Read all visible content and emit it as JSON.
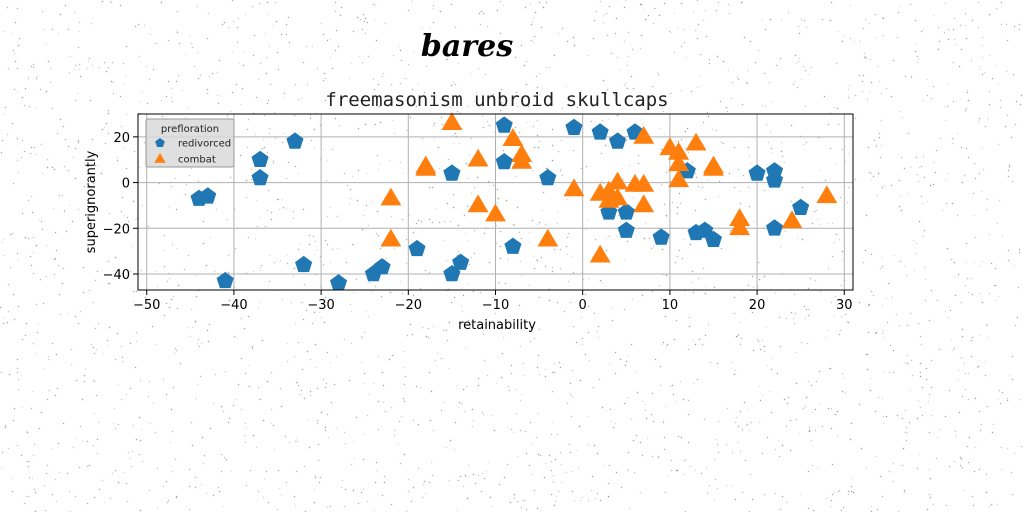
{
  "chart_data": {
    "type": "scatter",
    "supertitle": "bares",
    "title": "freemasonism unbroid skullcaps",
    "xlabel": "retainability",
    "ylabel": "superignorantly",
    "xlim": [
      -51,
      31
    ],
    "ylim": [
      -47,
      30
    ],
    "xticks": [
      -50,
      -40,
      -30,
      -20,
      -10,
      0,
      10,
      20,
      30
    ],
    "yticks": [
      -40,
      -20,
      0,
      20
    ],
    "grid": true,
    "legend": {
      "title": "prefloration",
      "placement": "top-left"
    },
    "series": [
      {
        "name": "redivorced",
        "marker": "pentagon",
        "color": "#1f77b4",
        "points": [
          [
            -44,
            -7
          ],
          [
            -43,
            -6
          ],
          [
            -41,
            -43
          ],
          [
            -37,
            10
          ],
          [
            -37,
            2
          ],
          [
            -33,
            18
          ],
          [
            -32,
            -36
          ],
          [
            -28,
            -44
          ],
          [
            -24,
            -40
          ],
          [
            -23,
            -37
          ],
          [
            -19,
            -29
          ],
          [
            -15,
            -40
          ],
          [
            -14,
            -35
          ],
          [
            -15,
            4
          ],
          [
            -9,
            25
          ],
          [
            -9,
            9
          ],
          [
            -8,
            -28
          ],
          [
            -4,
            2
          ],
          [
            -1,
            24
          ],
          [
            2,
            22
          ],
          [
            4,
            18
          ],
          [
            6,
            22
          ],
          [
            3,
            -13
          ],
          [
            5,
            -13
          ],
          [
            5,
            -21
          ],
          [
            9,
            -24
          ],
          [
            12,
            5
          ],
          [
            13,
            -22
          ],
          [
            14,
            -21
          ],
          [
            15,
            -25
          ],
          [
            20,
            4
          ],
          [
            22,
            5
          ],
          [
            22,
            1
          ],
          [
            22,
            -20
          ],
          [
            25,
            -11
          ]
        ]
      },
      {
        "name": "combat",
        "marker": "triangle",
        "color": "#ff7f0e",
        "points": [
          [
            -22,
            -7
          ],
          [
            -22,
            -25
          ],
          [
            -18,
            7
          ],
          [
            -18,
            6
          ],
          [
            -15,
            26
          ],
          [
            -12,
            -10
          ],
          [
            -12,
            10
          ],
          [
            -10,
            -14
          ],
          [
            -8,
            19
          ],
          [
            -7,
            12
          ],
          [
            -7,
            9
          ],
          [
            -4,
            -25
          ],
          [
            -1,
            -3
          ],
          [
            2,
            -32
          ],
          [
            2,
            -5
          ],
          [
            3,
            -8
          ],
          [
            3,
            -4
          ],
          [
            4,
            -7
          ],
          [
            4,
            0
          ],
          [
            6,
            -1
          ],
          [
            7,
            -1
          ],
          [
            7,
            20
          ],
          [
            7,
            -10
          ],
          [
            10,
            15
          ],
          [
            11,
            13
          ],
          [
            11,
            8
          ],
          [
            11,
            1
          ],
          [
            13,
            17
          ],
          [
            15,
            7
          ],
          [
            15,
            6
          ],
          [
            18,
            -20
          ],
          [
            18,
            -16
          ],
          [
            24,
            -17
          ],
          [
            28,
            -6
          ]
        ]
      }
    ]
  }
}
